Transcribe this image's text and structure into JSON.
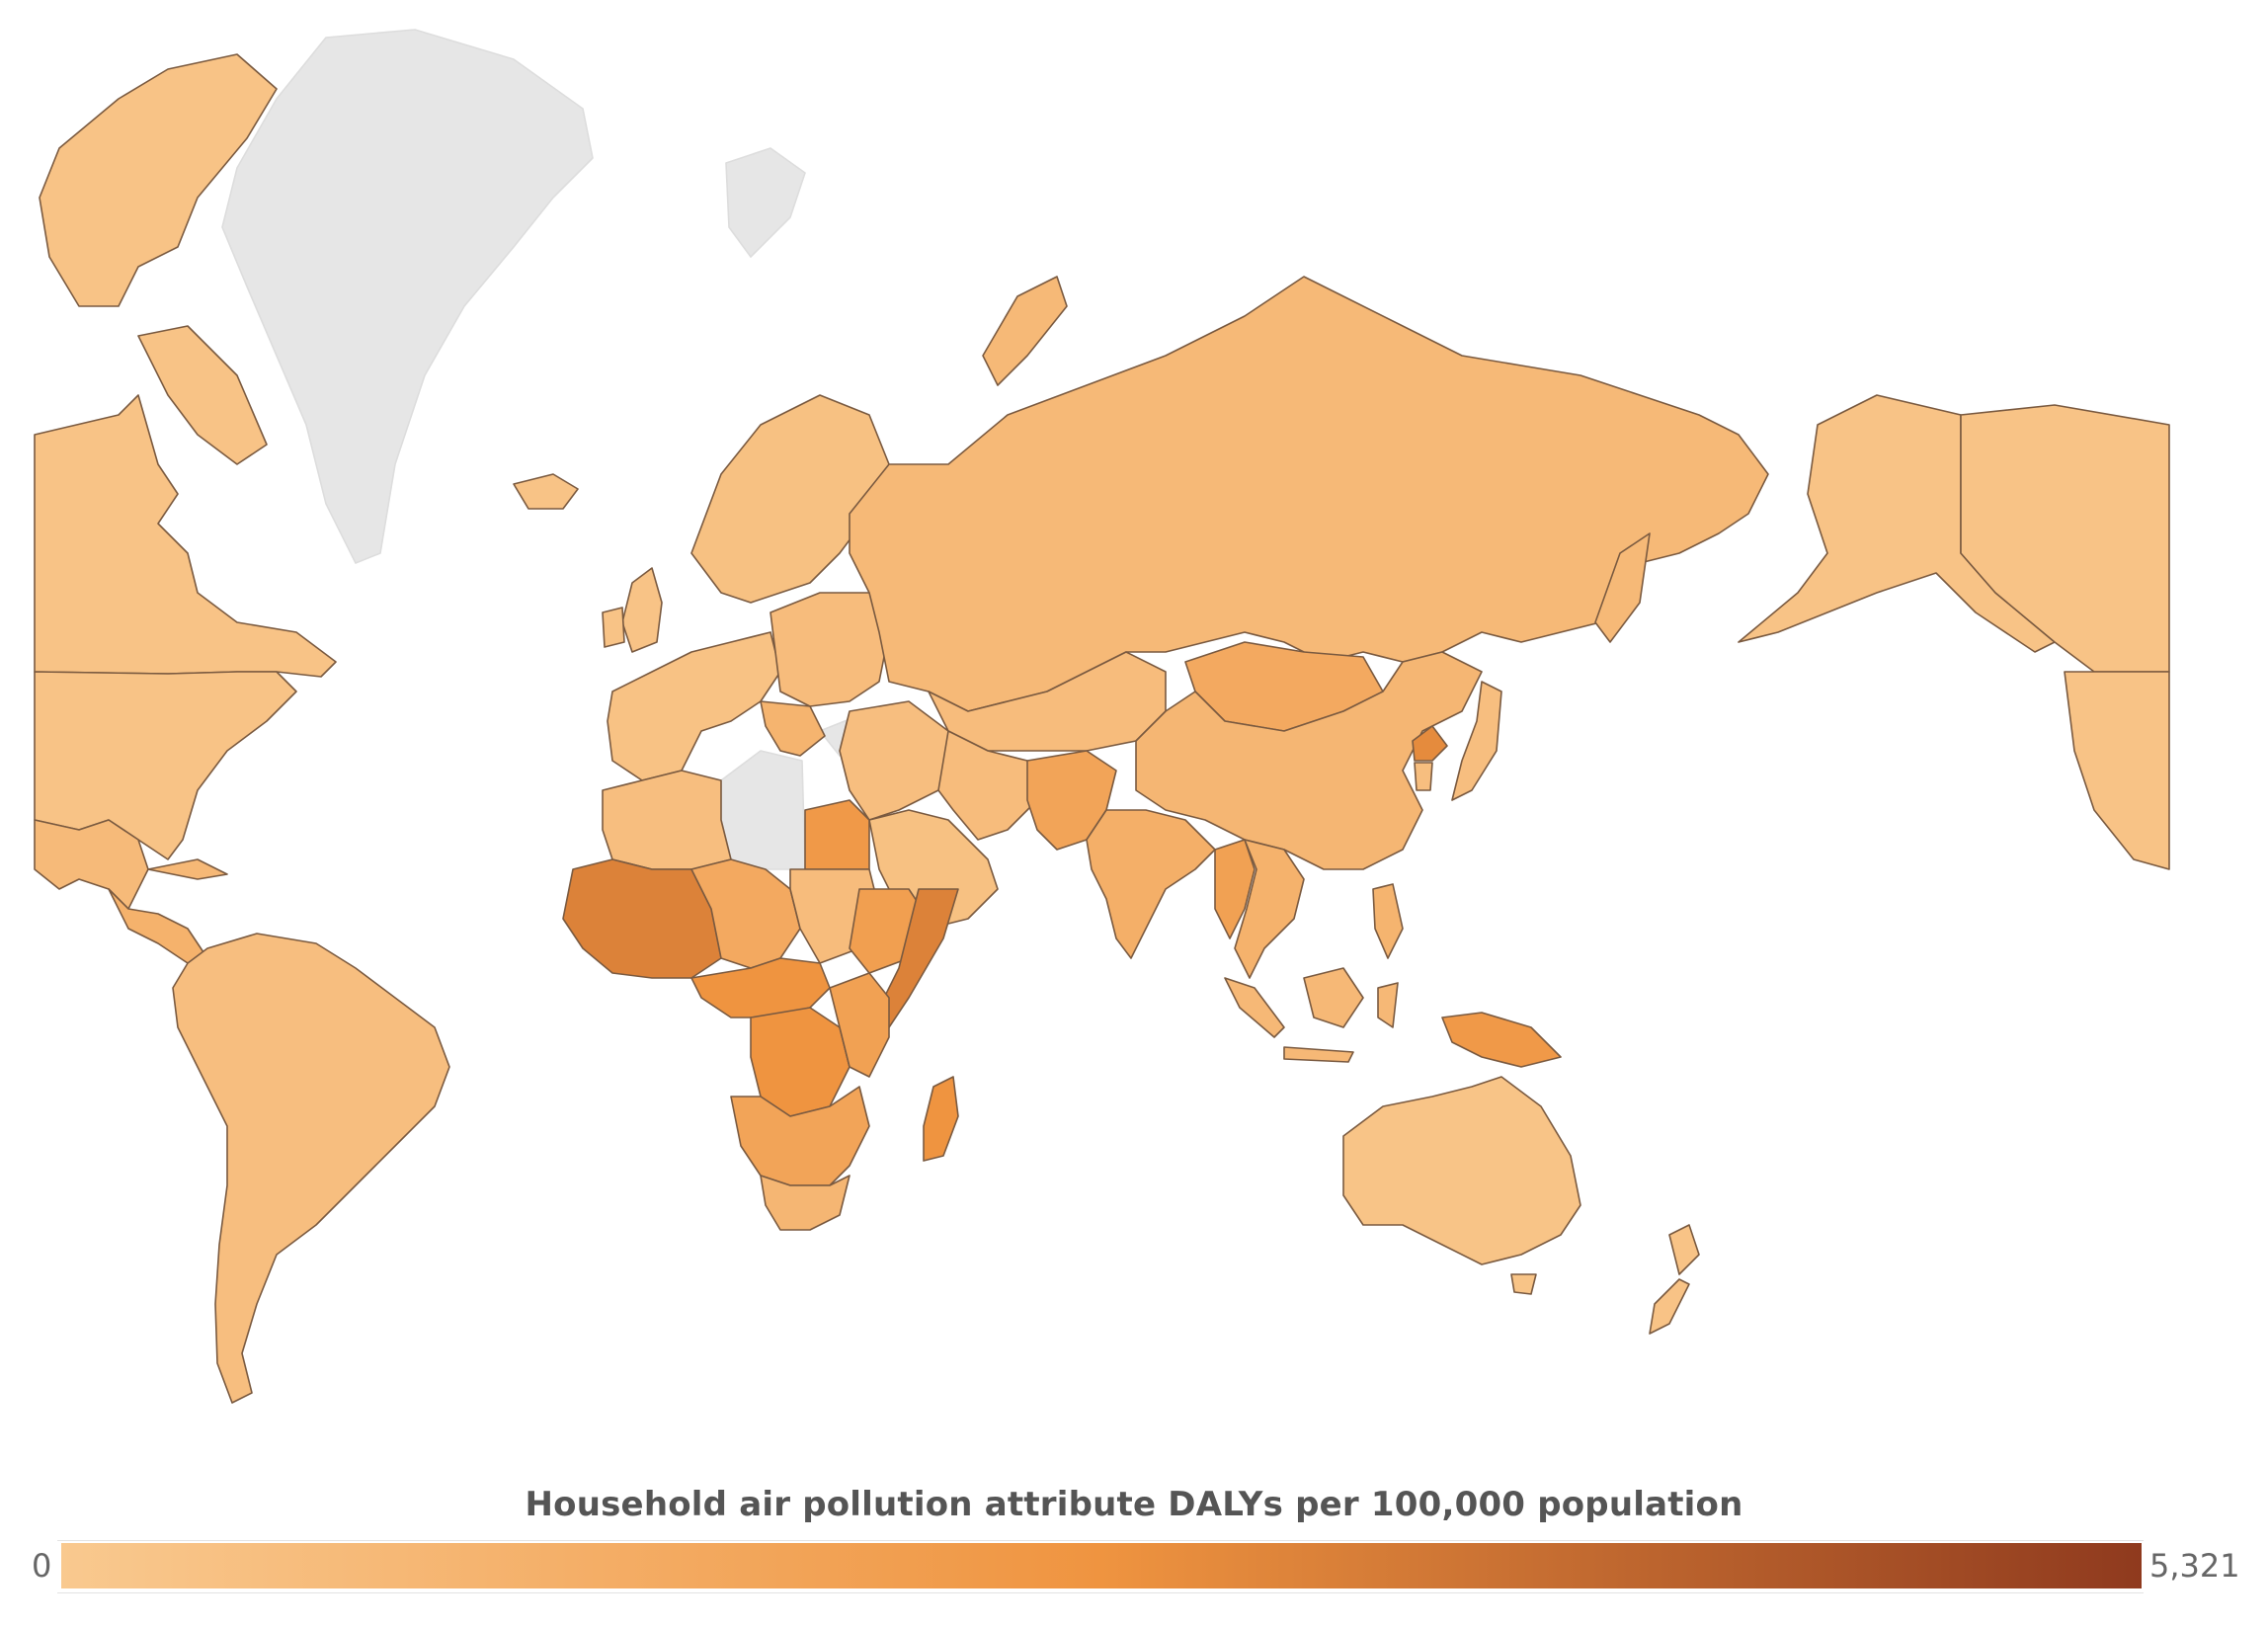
{
  "legend": {
    "title": "Household air pollution attribute  DALYs  per 100,000 population",
    "min_label": "0",
    "max_label": "5,321",
    "min_value": 0,
    "max_value": 5321,
    "color_low": "#f9c98f",
    "color_mid": "#ef9440",
    "color_high": "#8f3a1e"
  },
  "colors": {
    "no_data": "#e6e6e6",
    "border": "#7a5a40",
    "ocean": "#ffffff"
  },
  "regions": [
    {
      "name": "Greenland",
      "level": -1
    },
    {
      "name": "Svalbard",
      "level": -1
    },
    {
      "name": "North Africa (no data)",
      "level": -1
    },
    {
      "name": "Mediterranean islands (no data)",
      "level": -1
    },
    {
      "name": "Canada",
      "level": 0.06
    },
    {
      "name": "Canadian Arctic Islands",
      "level": 0.06
    },
    {
      "name": "United States",
      "level": 0.06
    },
    {
      "name": "Alaska",
      "level": 0.06
    },
    {
      "name": "Mexico",
      "level": 0.14
    },
    {
      "name": "Central America",
      "level": 0.22
    },
    {
      "name": "Cuba",
      "level": 0.16
    },
    {
      "name": "South America",
      "level": 0.1
    },
    {
      "name": "Iceland",
      "level": 0.06
    },
    {
      "name": "Scandinavia",
      "level": 0.08
    },
    {
      "name": "United Kingdom",
      "level": 0.06
    },
    {
      "name": "Ireland",
      "level": 0.06
    },
    {
      "name": "Western Europe",
      "level": 0.07
    },
    {
      "name": "Eastern Europe",
      "level": 0.12
    },
    {
      "name": "Balkans",
      "level": 0.2
    },
    {
      "name": "Russia",
      "level": 0.15
    },
    {
      "name": "Novaya Zemlya",
      "level": 0.15
    },
    {
      "name": "Central Asia",
      "level": 0.12
    },
    {
      "name": "Mongolia",
      "level": 0.3
    },
    {
      "name": "China",
      "level": 0.18
    },
    {
      "name": "North Korea",
      "level": 0.55
    },
    {
      "name": "Korea Japan",
      "level": 0.1
    },
    {
      "name": "Turkey Middle East",
      "level": 0.1
    },
    {
      "name": "Arabian Peninsula",
      "level": 0.08
    },
    {
      "name": "Iran",
      "level": 0.12
    },
    {
      "name": "Afghanistan Pakistan",
      "level": 0.35
    },
    {
      "name": "India",
      "level": 0.25
    },
    {
      "name": "Myanmar",
      "level": 0.38
    },
    {
      "name": "Southeast Asia",
      "level": 0.22
    },
    {
      "name": "Philippines",
      "level": 0.2
    },
    {
      "name": "Indonesia",
      "level": 0.16
    },
    {
      "name": "Papua New Guinea",
      "level": 0.45
    },
    {
      "name": "Australia",
      "level": 0.05
    },
    {
      "name": "New Zealand",
      "level": 0.06
    },
    {
      "name": "Morocco Algeria",
      "level": 0.1
    },
    {
      "name": "Sahel West Africa",
      "level": 0.45
    },
    {
      "name": "Chad Niger",
      "level": 0.6
    },
    {
      "name": "Sudan",
      "level": 0.3
    },
    {
      "name": "Egypt",
      "level": 0.12
    },
    {
      "name": "Ethiopia",
      "level": 0.4
    },
    {
      "name": "Somalia",
      "level": 0.6
    },
    {
      "name": "Central Africa",
      "level": 0.5
    },
    {
      "name": "DR Congo",
      "level": 0.5
    },
    {
      "name": "East Africa",
      "level": 0.38
    },
    {
      "name": "Southern Africa",
      "level": 0.35
    },
    {
      "name": "South Africa",
      "level": 0.18
    },
    {
      "name": "Madagascar",
      "level": 0.5
    }
  ]
}
